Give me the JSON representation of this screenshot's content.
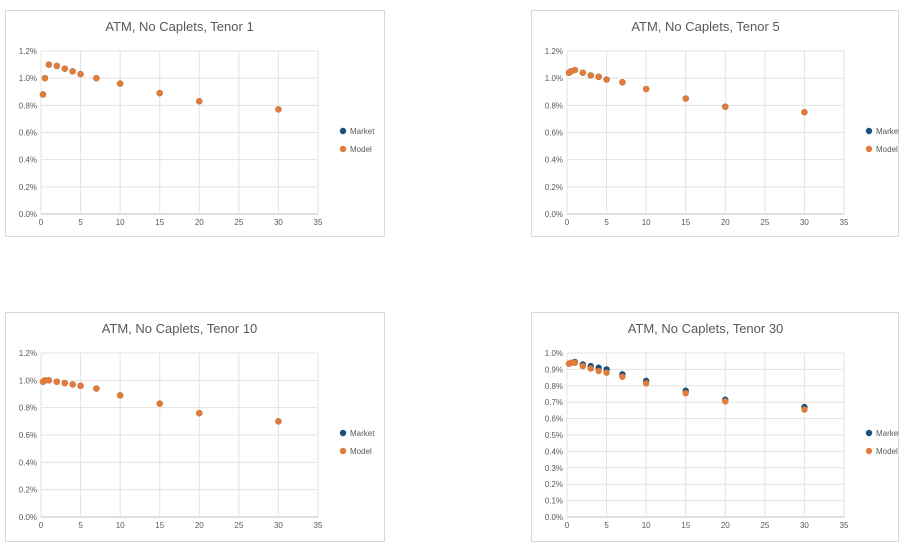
{
  "chart_data": [
    {
      "type": "scatter",
      "title": "ATM, No Caplets, Tenor 1",
      "xlabel": "",
      "ylabel": "",
      "xlim": [
        0,
        35
      ],
      "ylim": [
        0,
        0.012
      ],
      "xticks": [
        "0",
        "5",
        "10",
        "15",
        "20",
        "25",
        "30",
        "35"
      ],
      "yticks": [
        "0.0%",
        "0.2%",
        "0.4%",
        "0.6%",
        "0.8%",
        "1.0%",
        "1.2%"
      ],
      "grid": true,
      "legend": "right",
      "series": [
        {
          "name": "Market",
          "color": "#1f4e79",
          "x": [
            0.25,
            0.5,
            1,
            2,
            3,
            4,
            5,
            7,
            10,
            15,
            20,
            30
          ],
          "y": [
            0.0088,
            0.01,
            0.011,
            0.0109,
            0.0107,
            0.0105,
            0.0103,
            0.01,
            0.0096,
            0.0089,
            0.0083,
            0.0077
          ]
        },
        {
          "name": "Model",
          "color": "#e07b39",
          "x": [
            0.25,
            0.5,
            1,
            2,
            3,
            4,
            5,
            7,
            10,
            15,
            20,
            30
          ],
          "y": [
            0.0088,
            0.01,
            0.011,
            0.0109,
            0.0107,
            0.0105,
            0.0103,
            0.01,
            0.0096,
            0.0089,
            0.0083,
            0.0077
          ]
        }
      ]
    },
    {
      "type": "scatter",
      "title": "ATM, No Caplets, Tenor 5",
      "xlabel": "",
      "ylabel": "",
      "xlim": [
        0,
        35
      ],
      "ylim": [
        0,
        0.012
      ],
      "xticks": [
        "0",
        "5",
        "10",
        "15",
        "20",
        "25",
        "30",
        "35"
      ],
      "yticks": [
        "0.0%",
        "0.2%",
        "0.4%",
        "0.6%",
        "0.8%",
        "1.0%",
        "1.2%"
      ],
      "grid": true,
      "legend": "right",
      "series": [
        {
          "name": "Market",
          "color": "#1f4e79",
          "x": [
            0.25,
            0.5,
            1,
            2,
            3,
            4,
            5,
            7,
            10,
            15,
            20,
            30
          ],
          "y": [
            0.0104,
            0.0105,
            0.0106,
            0.0104,
            0.0102,
            0.0101,
            0.0099,
            0.0097,
            0.0092,
            0.0085,
            0.0079,
            0.0075
          ]
        },
        {
          "name": "Model",
          "color": "#e07b39",
          "x": [
            0.25,
            0.5,
            1,
            2,
            3,
            4,
            5,
            7,
            10,
            15,
            20,
            30
          ],
          "y": [
            0.0104,
            0.0105,
            0.0106,
            0.0104,
            0.0102,
            0.0101,
            0.0099,
            0.0097,
            0.0092,
            0.0085,
            0.0079,
            0.0075
          ]
        }
      ]
    },
    {
      "type": "scatter",
      "title": "ATM, No Caplets, Tenor 10",
      "xlabel": "",
      "ylabel": "",
      "xlim": [
        0,
        35
      ],
      "ylim": [
        0,
        0.012
      ],
      "xticks": [
        "0",
        "5",
        "10",
        "15",
        "20",
        "25",
        "30",
        "35"
      ],
      "yticks": [
        "0.0%",
        "0.2%",
        "0.4%",
        "0.6%",
        "0.8%",
        "1.0%",
        "1.2%"
      ],
      "grid": true,
      "legend": "right",
      "series": [
        {
          "name": "Market",
          "color": "#1f4e79",
          "x": [
            0.25,
            0.5,
            1,
            2,
            3,
            4,
            5,
            7,
            10,
            15,
            20,
            30
          ],
          "y": [
            0.0099,
            0.01,
            0.01,
            0.0099,
            0.0098,
            0.0097,
            0.0096,
            0.0094,
            0.0089,
            0.0083,
            0.0076,
            0.007
          ]
        },
        {
          "name": "Model",
          "color": "#e07b39",
          "x": [
            0.25,
            0.5,
            1,
            2,
            3,
            4,
            5,
            7,
            10,
            15,
            20,
            30
          ],
          "y": [
            0.0099,
            0.01,
            0.01,
            0.0099,
            0.0098,
            0.0097,
            0.0096,
            0.0094,
            0.0089,
            0.0083,
            0.0076,
            0.007
          ]
        }
      ]
    },
    {
      "type": "scatter",
      "title": "ATM, No Caplets, Tenor 30",
      "xlabel": "",
      "ylabel": "",
      "xlim": [
        0,
        35
      ],
      "ylim": [
        0,
        0.01
      ],
      "xticks": [
        "0",
        "5",
        "10",
        "15",
        "20",
        "25",
        "30",
        "35"
      ],
      "yticks": [
        "0.0%",
        "0.1%",
        "0.2%",
        "0.3%",
        "0.4%",
        "0.5%",
        "0.6%",
        "0.7%",
        "0.8%",
        "0.9%",
        "1.0%"
      ],
      "grid": true,
      "legend": "right",
      "series": [
        {
          "name": "Market",
          "color": "#1f4e79",
          "x": [
            0.25,
            0.5,
            1,
            2,
            3,
            4,
            5,
            7,
            10,
            15,
            20,
            30
          ],
          "y": [
            0.00935,
            0.0094,
            0.00945,
            0.0093,
            0.0092,
            0.0091,
            0.009,
            0.0087,
            0.0083,
            0.0077,
            0.00715,
            0.0067
          ]
        },
        {
          "name": "Model",
          "color": "#e07b39",
          "x": [
            0.25,
            0.5,
            1,
            2,
            3,
            4,
            5,
            7,
            10,
            15,
            20,
            30
          ],
          "y": [
            0.00935,
            0.0094,
            0.0094,
            0.0092,
            0.00905,
            0.0089,
            0.0088,
            0.00855,
            0.00815,
            0.00755,
            0.00705,
            0.00655
          ]
        }
      ]
    }
  ]
}
